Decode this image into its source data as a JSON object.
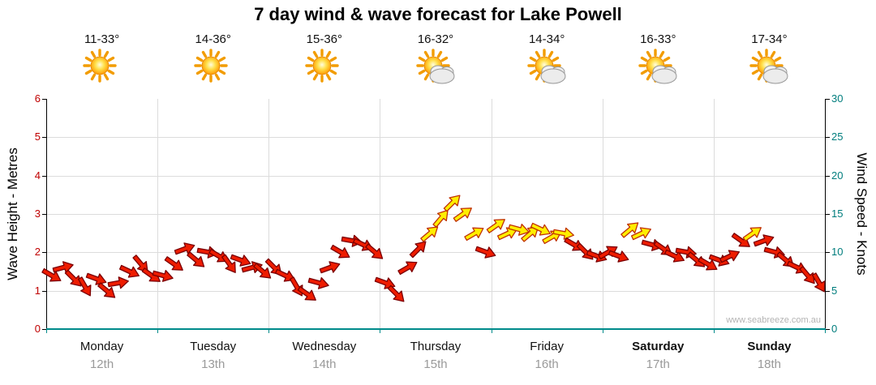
{
  "chart_data": {
    "type": "scatter",
    "style": "wind-arrows",
    "title": "7 day wind & wave forecast for Lake Powell",
    "watermark": "www.seabreeze.com.au",
    "y_left": {
      "label": "Wave Height - Metres",
      "min": 0,
      "max": 6,
      "ticks": [
        0,
        1,
        2,
        3,
        4,
        5,
        6
      ]
    },
    "y_right": {
      "label": "Wind Speed - Knots",
      "min": 0,
      "max": 30,
      "ticks": [
        0,
        5,
        10,
        15,
        20,
        25,
        30
      ]
    },
    "yellow_threshold_knots": 12,
    "colors": {
      "arrow_low_fill": "#ee1c00",
      "arrow_low_stroke": "#7a0000",
      "arrow_high_fill": "#ffee00",
      "arrow_high_stroke": "#c03000",
      "grid": "#dcdcdc",
      "axis_bottom": "#008b8b",
      "left_tick_text": "#c00000",
      "right_tick_text": "#007d7d"
    },
    "days": [
      {
        "name": "Monday",
        "date": "12th",
        "temp": "11-33°",
        "icon": "sunny",
        "bold": false,
        "knots": [
          7,
          8,
          6.5,
          5.5,
          6.5,
          5,
          6,
          7.5,
          8.5,
          7
        ],
        "dirs": [
          30,
          -15,
          45,
          60,
          20,
          40,
          -10,
          25,
          50,
          35
        ]
      },
      {
        "name": "Tuesday",
        "date": "13th",
        "temp": "14-36°",
        "icon": "sunny",
        "bold": false,
        "knots": [
          7,
          8.5,
          10.5,
          9,
          10,
          9.5,
          8.5,
          9,
          8,
          7.5
        ],
        "dirs": [
          15,
          35,
          -20,
          40,
          10,
          30,
          55,
          20,
          -15,
          40
        ]
      },
      {
        "name": "Wednesday",
        "date": "14th",
        "temp": "15-36°",
        "icon": "sunny",
        "bold": false,
        "knots": [
          8,
          7,
          5.5,
          4.5,
          6,
          8,
          10,
          11.5,
          11,
          10
        ],
        "dirs": [
          45,
          25,
          60,
          35,
          15,
          -20,
          30,
          10,
          25,
          40
        ]
      },
      {
        "name": "Thursday",
        "date": "15th",
        "temp": "16-32°",
        "icon": "partly-cloudy",
        "bold": false,
        "knots": [
          6,
          4.5,
          8,
          10.5,
          12.5,
          14.5,
          16.5,
          15,
          12.5,
          10
        ],
        "dirs": [
          20,
          45,
          -30,
          -45,
          -40,
          -50,
          -45,
          -35,
          -30,
          20
        ]
      },
      {
        "name": "Friday",
        "date": "16th",
        "temp": "14-34°",
        "icon": "partly-cloudy",
        "bold": false,
        "knots": [
          13.5,
          12.5,
          13,
          12.5,
          13,
          12,
          12.5,
          11,
          10,
          9.5
        ],
        "dirs": [
          -35,
          -25,
          15,
          -40,
          25,
          -30,
          10,
          30,
          45,
          20
        ]
      },
      {
        "name": "Saturday",
        "date": "17th",
        "temp": "16-33°",
        "icon": "partly-cloudy",
        "bold": true,
        "knots": [
          10,
          9.5,
          13,
          12.5,
          11,
          10.5,
          9.5,
          10,
          9,
          8.5
        ],
        "dirs": [
          -30,
          20,
          -40,
          -25,
          15,
          35,
          25,
          10,
          40,
          30
        ]
      },
      {
        "name": "Sunday",
        "date": "18th",
        "temp": "17-34°",
        "icon": "partly-cloudy",
        "bold": true,
        "knots": [
          9,
          9.5,
          11.5,
          12.5,
          11.5,
          10,
          9,
          8,
          7,
          6
        ],
        "dirs": [
          20,
          -25,
          35,
          -35,
          -20,
          15,
          40,
          25,
          50,
          60
        ]
      }
    ]
  }
}
